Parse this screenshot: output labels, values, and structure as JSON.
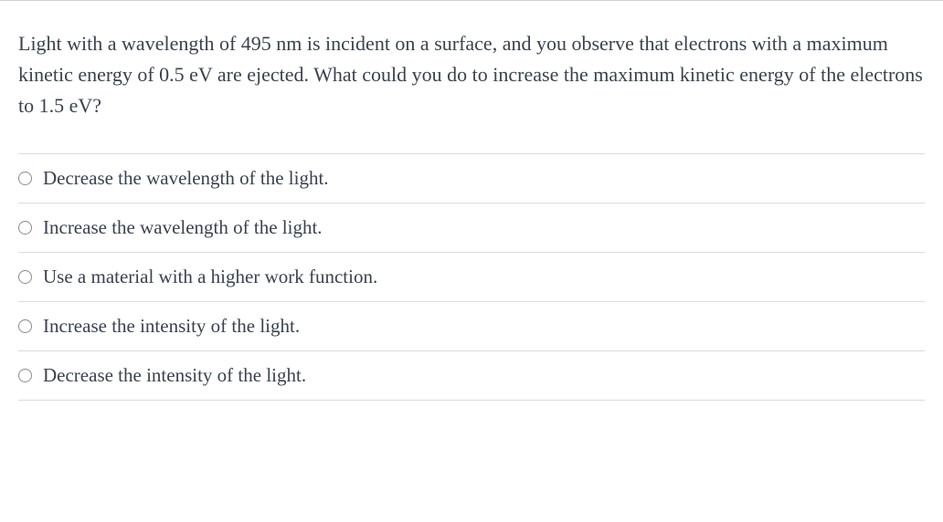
{
  "question": {
    "text": "Light with a wavelength of 495 nm is incident on a surface, and you observe that electrons with a maximum kinetic energy of 0.5 eV are ejected. What could you do to increase the maximum kinetic energy of the electrons to 1.5 eV?"
  },
  "options": [
    {
      "label": "Decrease the wavelength of the light."
    },
    {
      "label": "Increase the wavelength of the light."
    },
    {
      "label": "Use a material with a higher work function."
    },
    {
      "label": "Increase the intensity of the light."
    },
    {
      "label": "Decrease the intensity of the light."
    }
  ],
  "colors": {
    "text": "#3a4250",
    "border": "#dcdcdc",
    "radio_border": "#8a8a8a",
    "background": "#ffffff"
  }
}
